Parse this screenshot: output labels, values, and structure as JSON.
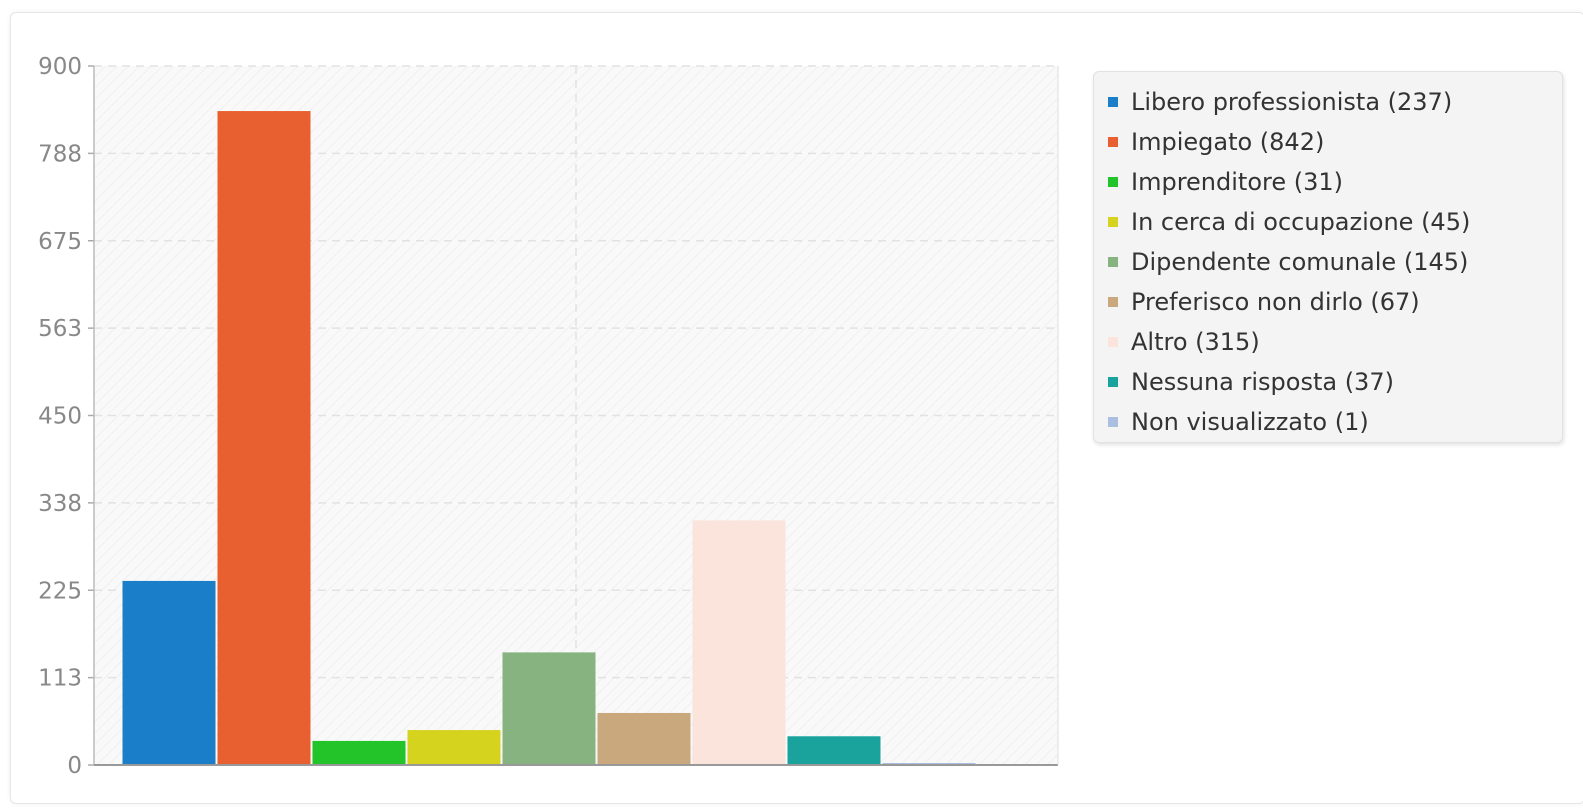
{
  "chart_data": {
    "type": "bar",
    "title": "",
    "xlabel": "",
    "ylabel": "",
    "ylim": [
      0,
      900
    ],
    "yticks": [
      "0",
      "113",
      "225",
      "338",
      "450",
      "563",
      "675",
      "788",
      "900"
    ],
    "yticks_values": [
      0,
      112.5,
      225,
      337.5,
      450,
      562.5,
      675,
      787.5,
      900
    ],
    "grid": true,
    "legend_position": "right",
    "series": [
      {
        "name": "Libero professionista (237)",
        "value": 237,
        "color": "#1a7ec9"
      },
      {
        "name": "Impiegato (842)",
        "value": 842,
        "color": "#e8602f"
      },
      {
        "name": "Imprenditore (31)",
        "value": 31,
        "color": "#22c42a"
      },
      {
        "name": "In cerca di occupazione (45)",
        "value": 45,
        "color": "#d6d31f"
      },
      {
        "name": "Dipendente comunale (145)",
        "value": 145,
        "color": "#86b380"
      },
      {
        "name": "Preferisco non dirlo (67)",
        "value": 67,
        "color": "#c9a87e"
      },
      {
        "name": "Altro (315)",
        "value": 315,
        "color": "#fbe4db"
      },
      {
        "name": "Nessuna risposta (37)",
        "value": 37,
        "color": "#19a39c"
      },
      {
        "name": "Non visualizzato (1)",
        "value": 1,
        "color": "#aabfdf"
      }
    ]
  }
}
